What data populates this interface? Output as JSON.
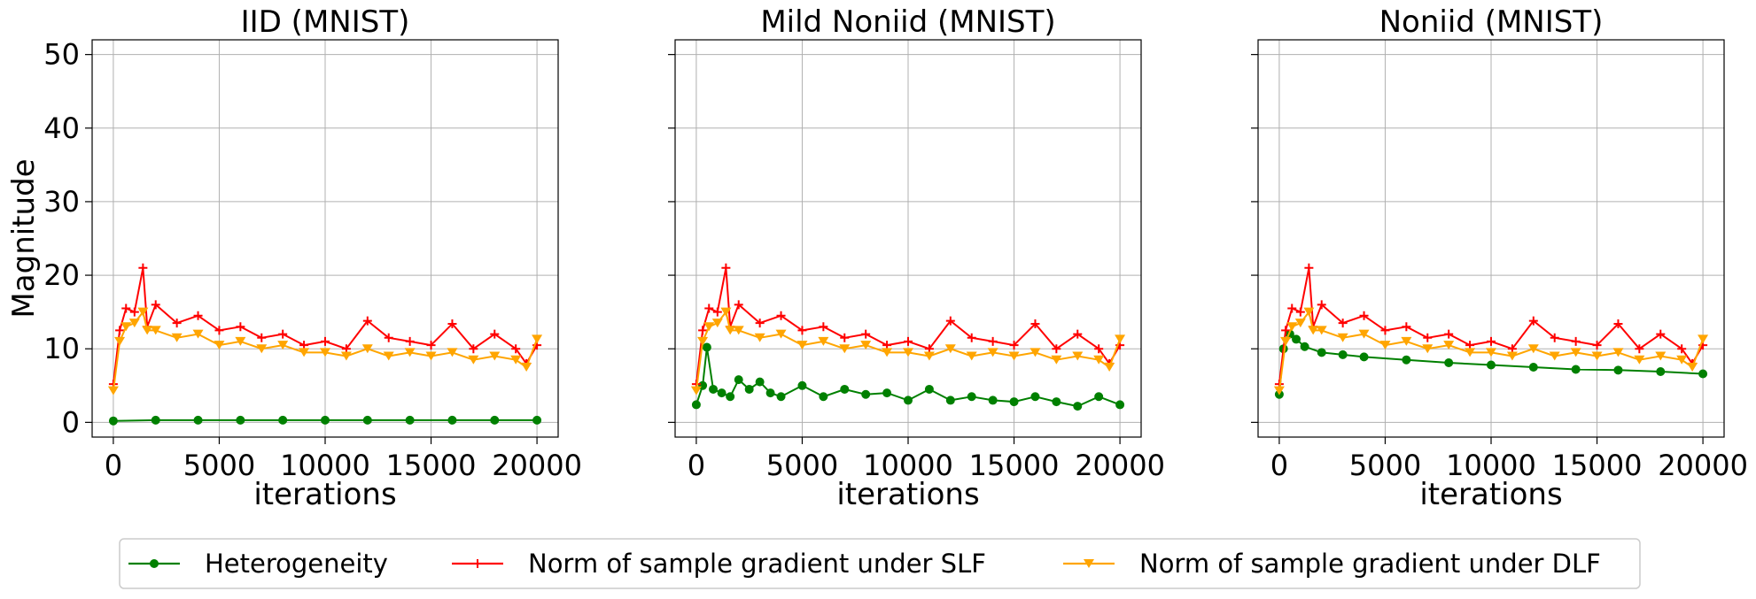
{
  "legend": [
    {
      "name": "Heterogeneity",
      "color": "#008000",
      "marker": "circle"
    },
    {
      "name": "Norm of sample gradient under SLF",
      "color": "#ff0000",
      "marker": "plus"
    },
    {
      "name": "Norm of sample gradient under DLF",
      "color": "#ffa500",
      "marker": "triangle-down"
    }
  ],
  "chart_data": [
    {
      "type": "line",
      "title": "IID (MNIST)",
      "xlabel": "iterations",
      "ylabel": "Magnitude",
      "xlim": [
        -1000,
        21000
      ],
      "ylim": [
        -2,
        52
      ],
      "xticks": [
        0,
        5000,
        10000,
        15000,
        20000
      ],
      "yticks": [
        0,
        10,
        20,
        30,
        40,
        50
      ],
      "grid": true,
      "series": [
        {
          "name": "Heterogeneity",
          "x": [
            0,
            2000,
            4000,
            6000,
            8000,
            10000,
            12000,
            14000,
            16000,
            18000,
            20000
          ],
          "values": [
            0.2,
            0.3,
            0.3,
            0.3,
            0.3,
            0.3,
            0.3,
            0.3,
            0.3,
            0.3,
            0.3
          ]
        },
        {
          "name": "Norm of sample gradient under SLF",
          "x": [
            0,
            300,
            600,
            1000,
            1400,
            1600,
            2000,
            3000,
            4000,
            5000,
            6000,
            7000,
            8000,
            9000,
            10000,
            11000,
            12000,
            13000,
            14000,
            15000,
            16000,
            17000,
            18000,
            19000,
            19500,
            20000
          ],
          "values": [
            5.2,
            12.5,
            15.5,
            15.0,
            21.0,
            13.0,
            16.0,
            13.5,
            14.5,
            12.5,
            13.0,
            11.5,
            12.0,
            10.5,
            11.0,
            10.0,
            13.8,
            11.5,
            11.0,
            10.5,
            13.4,
            10.0,
            12.0,
            10.0,
            8.0,
            10.5
          ]
        },
        {
          "name": "Norm of sample gradient under DLF",
          "x": [
            0,
            300,
            600,
            1000,
            1400,
            1600,
            2000,
            3000,
            4000,
            5000,
            6000,
            7000,
            8000,
            9000,
            10000,
            11000,
            12000,
            13000,
            14000,
            15000,
            16000,
            17000,
            18000,
            19000,
            19500,
            20000
          ],
          "values": [
            4.3,
            11.0,
            13.0,
            13.5,
            15.0,
            12.5,
            12.5,
            11.5,
            12.0,
            10.5,
            11.0,
            10.0,
            10.5,
            9.5,
            9.5,
            9.0,
            10.0,
            9.0,
            9.5,
            9.0,
            9.5,
            8.5,
            9.0,
            8.5,
            7.5,
            11.3
          ]
        }
      ]
    },
    {
      "type": "line",
      "title": "Mild Noniid (MNIST)",
      "xlabel": "iterations",
      "ylabel": "",
      "xlim": [
        -1000,
        21000
      ],
      "ylim": [
        -2,
        52
      ],
      "xticks": [
        0,
        5000,
        10000,
        15000,
        20000
      ],
      "yticks": [
        0,
        10,
        20,
        30,
        40,
        50
      ],
      "grid": true,
      "series": [
        {
          "name": "Heterogeneity",
          "x": [
            0,
            300,
            500,
            800,
            1200,
            1600,
            2000,
            2500,
            3000,
            3500,
            4000,
            5000,
            6000,
            7000,
            8000,
            9000,
            10000,
            11000,
            12000,
            13000,
            14000,
            15000,
            16000,
            17000,
            18000,
            19000,
            20000
          ],
          "values": [
            2.4,
            5.0,
            10.2,
            4.5,
            4.0,
            3.5,
            5.8,
            4.5,
            5.5,
            4.0,
            3.5,
            5.0,
            3.5,
            4.5,
            3.8,
            4.0,
            3.0,
            4.5,
            3.0,
            3.5,
            3.0,
            2.8,
            3.5,
            2.8,
            2.2,
            3.5,
            2.4
          ]
        },
        {
          "name": "Norm of sample gradient under SLF",
          "x": [
            0,
            300,
            600,
            1000,
            1400,
            1600,
            2000,
            3000,
            4000,
            5000,
            6000,
            7000,
            8000,
            9000,
            10000,
            11000,
            12000,
            13000,
            14000,
            15000,
            16000,
            17000,
            18000,
            19000,
            19500,
            20000
          ],
          "values": [
            5.2,
            12.5,
            15.5,
            15.0,
            21.0,
            13.0,
            16.0,
            13.5,
            14.5,
            12.5,
            13.0,
            11.5,
            12.0,
            10.5,
            11.0,
            10.0,
            13.8,
            11.5,
            11.0,
            10.5,
            13.4,
            10.0,
            12.0,
            10.0,
            8.0,
            10.5
          ]
        },
        {
          "name": "Norm of sample gradient under DLF",
          "x": [
            0,
            300,
            600,
            1000,
            1400,
            1600,
            2000,
            3000,
            4000,
            5000,
            6000,
            7000,
            8000,
            9000,
            10000,
            11000,
            12000,
            13000,
            14000,
            15000,
            16000,
            17000,
            18000,
            19000,
            19500,
            20000
          ],
          "values": [
            4.3,
            11.0,
            13.0,
            13.5,
            15.0,
            12.5,
            12.5,
            11.5,
            12.0,
            10.5,
            11.0,
            10.0,
            10.5,
            9.5,
            9.5,
            9.0,
            10.0,
            9.0,
            9.5,
            9.0,
            9.5,
            8.5,
            9.0,
            8.5,
            7.5,
            11.3
          ]
        }
      ]
    },
    {
      "type": "line",
      "title": "Noniid (MNIST)",
      "xlabel": "iterations",
      "ylabel": "",
      "xlim": [
        -1000,
        21000
      ],
      "ylim": [
        -2,
        52
      ],
      "xticks": [
        0,
        5000,
        10000,
        15000,
        20000
      ],
      "yticks": [
        0,
        10,
        20,
        30,
        40,
        50
      ],
      "grid": true,
      "series": [
        {
          "name": "Heterogeneity",
          "x": [
            0,
            200,
            500,
            800,
            1200,
            2000,
            3000,
            4000,
            6000,
            8000,
            10000,
            12000,
            14000,
            16000,
            18000,
            20000
          ],
          "values": [
            3.8,
            10.0,
            12.0,
            11.3,
            10.3,
            9.5,
            9.2,
            8.9,
            8.5,
            8.1,
            7.8,
            7.5,
            7.2,
            7.1,
            6.9,
            6.6
          ]
        },
        {
          "name": "Norm of sample gradient under SLF",
          "x": [
            0,
            300,
            600,
            1000,
            1400,
            1600,
            2000,
            3000,
            4000,
            5000,
            6000,
            7000,
            8000,
            9000,
            10000,
            11000,
            12000,
            13000,
            14000,
            15000,
            16000,
            17000,
            18000,
            19000,
            19500,
            20000
          ],
          "values": [
            5.2,
            12.5,
            15.5,
            15.0,
            21.0,
            13.0,
            16.0,
            13.5,
            14.5,
            12.5,
            13.0,
            11.5,
            12.0,
            10.5,
            11.0,
            10.0,
            13.8,
            11.5,
            11.0,
            10.5,
            13.4,
            10.0,
            12.0,
            10.0,
            8.0,
            10.5
          ]
        },
        {
          "name": "Norm of sample gradient under DLF",
          "x": [
            0,
            300,
            600,
            1000,
            1400,
            1600,
            2000,
            3000,
            4000,
            5000,
            6000,
            7000,
            8000,
            9000,
            10000,
            11000,
            12000,
            13000,
            14000,
            15000,
            16000,
            17000,
            18000,
            19000,
            19500,
            20000
          ],
          "values": [
            4.3,
            11.0,
            13.0,
            13.5,
            15.0,
            12.5,
            12.5,
            11.5,
            12.0,
            10.5,
            11.0,
            10.0,
            10.5,
            9.5,
            9.5,
            9.0,
            10.0,
            9.0,
            9.5,
            9.0,
            9.5,
            8.5,
            9.0,
            8.5,
            7.5,
            11.3
          ]
        }
      ]
    }
  ]
}
